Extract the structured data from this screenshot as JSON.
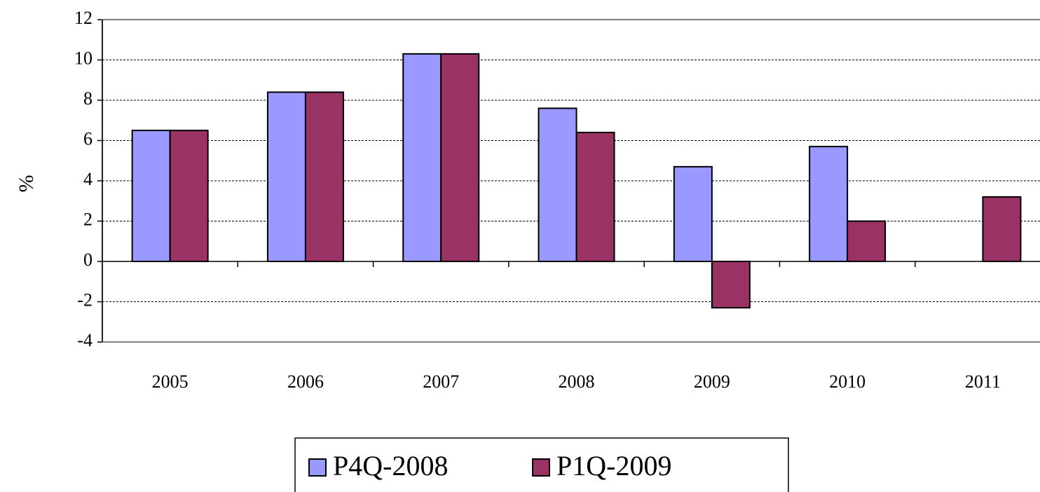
{
  "chart_data": {
    "type": "bar",
    "y_label": "%",
    "categories": [
      "2005",
      "2006",
      "2007",
      "2008",
      "2009",
      "2010",
      "2011"
    ],
    "series": [
      {
        "name": "P4Q-2008",
        "color": "#9999ff",
        "values": [
          6.5,
          8.4,
          10.3,
          7.6,
          4.7,
          5.7,
          null
        ]
      },
      {
        "name": "P1Q-2009",
        "color": "#993366",
        "values": [
          6.5,
          8.4,
          10.3,
          6.4,
          -2.3,
          2.0,
          3.2
        ]
      }
    ],
    "ylim": [
      -4,
      12
    ],
    "yticks": [
      -4,
      -2,
      0,
      2,
      4,
      6,
      8,
      10,
      12
    ],
    "grid": true,
    "legend": "bottom"
  }
}
